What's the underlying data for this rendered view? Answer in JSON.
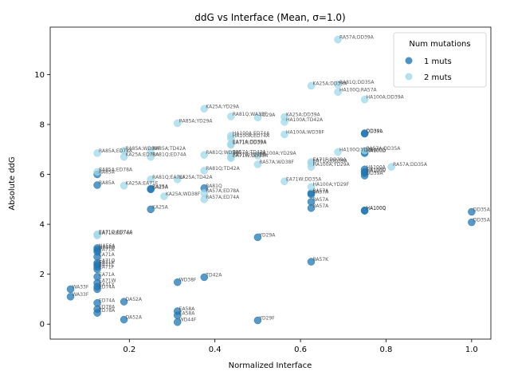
{
  "chart_data": {
    "type": "scatter",
    "title": "ddG vs Interface (Mean, σ=1.0)",
    "xlabel": "Normalized Interface",
    "ylabel": "Absolute ddG",
    "xlim": [
      0.015,
      1.045
    ],
    "ylim": [
      -0.6,
      11.9
    ],
    "xticks": [
      "0.2",
      "0.4",
      "0.6",
      "0.8",
      "1.0"
    ],
    "xtick_values": [
      0.2,
      0.4,
      0.6,
      0.8,
      1.0
    ],
    "yticks": [
      "0",
      "2",
      "4",
      "6",
      "8",
      "10"
    ],
    "ytick_values": [
      0,
      2,
      4,
      6,
      8,
      10
    ],
    "grid": false,
    "legend": {
      "title": "Num mutations",
      "position": "top-right",
      "entries": [
        "1 muts",
        "2 muts"
      ]
    },
    "colors": {
      "1 muts": "#1f77b4",
      "2 muts": "#9fd8ea"
    },
    "series": [
      {
        "name": "1 muts",
        "points": [
          {
            "x": 0.125,
            "y": 5.57,
            "label": "RA85A"
          },
          {
            "x": 0.125,
            "y": 6.0,
            "label": "RA85A"
          },
          {
            "x": 0.25,
            "y": 5.42,
            "label": "RA25A"
          },
          {
            "x": 0.25,
            "y": 5.4,
            "label": "KA25A"
          },
          {
            "x": 0.25,
            "y": 4.6,
            "label": "KA25A"
          },
          {
            "x": 0.375,
            "y": 5.45,
            "label": "RA81Q"
          },
          {
            "x": 0.75,
            "y": 7.65,
            "label": "DD39L"
          },
          {
            "x": 0.75,
            "y": 7.63,
            "label": "DD39A"
          },
          {
            "x": 0.75,
            "y": 6.9,
            "label": "HA100G"
          },
          {
            "x": 0.75,
            "y": 6.85,
            "label": "HA100D"
          },
          {
            "x": 0.75,
            "y": 6.2,
            "label": "HA100A"
          },
          {
            "x": 0.75,
            "y": 6.1,
            "label": "HA100Q"
          },
          {
            "x": 0.75,
            "y": 6.05,
            "label": "HA100E"
          },
          {
            "x": 0.75,
            "y": 5.95,
            "label": "DD39A"
          },
          {
            "x": 0.75,
            "y": 4.56,
            "label": "HA100Q"
          },
          {
            "x": 0.75,
            "y": 4.54,
            "label": "HA100Q"
          },
          {
            "x": 0.625,
            "y": 5.25,
            "label": "RA57A"
          },
          {
            "x": 0.625,
            "y": 5.2,
            "label": "RA57A"
          },
          {
            "x": 0.625,
            "y": 4.9,
            "label": "RA57A"
          },
          {
            "x": 0.625,
            "y": 4.65,
            "label": "RA57A"
          },
          {
            "x": 0.625,
            "y": 2.5,
            "label": "RA57K"
          },
          {
            "x": 1.0,
            "y": 4.5,
            "label": "DD35A"
          },
          {
            "x": 1.0,
            "y": 4.08,
            "label": "DD35A"
          },
          {
            "x": 0.5,
            "y": 3.48,
            "label": "YD29A"
          },
          {
            "x": 0.125,
            "y": 3.05,
            "label": "NA56A"
          },
          {
            "x": 0.125,
            "y": 2.98,
            "label": "NA56A"
          },
          {
            "x": 0.125,
            "y": 2.9,
            "label": "EA71A"
          },
          {
            "x": 0.125,
            "y": 2.7,
            "label": "EA71A"
          },
          {
            "x": 0.125,
            "y": 2.45,
            "label": "EA71Q"
          },
          {
            "x": 0.125,
            "y": 2.38,
            "label": "EA71K"
          },
          {
            "x": 0.125,
            "y": 2.3,
            "label": "EA71L"
          },
          {
            "x": 0.125,
            "y": 2.2,
            "label": "EA71F"
          },
          {
            "x": 0.125,
            "y": 1.9,
            "label": "EA71A"
          },
          {
            "x": 0.125,
            "y": 1.65,
            "label": "EA71W"
          },
          {
            "x": 0.125,
            "y": 1.5,
            "label": "EA71Y"
          },
          {
            "x": 0.125,
            "y": 1.4,
            "label": "ED74A"
          },
          {
            "x": 0.0625,
            "y": 1.4,
            "label": "WA33F"
          },
          {
            "x": 0.0625,
            "y": 1.1,
            "label": "WA33F"
          },
          {
            "x": 0.125,
            "y": 0.85,
            "label": "ED74A"
          },
          {
            "x": 0.125,
            "y": 0.6,
            "label": "ED78A"
          },
          {
            "x": 0.125,
            "y": 0.45,
            "label": "ED78A"
          },
          {
            "x": 0.1875,
            "y": 0.9,
            "label": "DA52A"
          },
          {
            "x": 0.1875,
            "y": 0.18,
            "label": "DA52A"
          },
          {
            "x": 0.3125,
            "y": 1.68,
            "label": "WD38F"
          },
          {
            "x": 0.375,
            "y": 1.88,
            "label": "TD42A"
          },
          {
            "x": 0.3125,
            "y": 0.52,
            "label": "EA58A"
          },
          {
            "x": 0.3125,
            "y": 0.35,
            "label": "EA58A"
          },
          {
            "x": 0.3125,
            "y": 0.08,
            "label": "WD44F"
          },
          {
            "x": 0.5,
            "y": 0.15,
            "label": "YD29F"
          }
        ]
      },
      {
        "name": "2 muts",
        "points": [
          {
            "x": 0.6875,
            "y": 11.4,
            "label": "RA57A;DD39A"
          },
          {
            "x": 0.625,
            "y": 9.55,
            "label": "KA25A;DD39A"
          },
          {
            "x": 0.6875,
            "y": 9.6,
            "label": "RA81Q;DD35A"
          },
          {
            "x": 0.6875,
            "y": 9.3,
            "label": "HA100Q;RA57A"
          },
          {
            "x": 0.75,
            "y": 9.0,
            "label": "HA100A;DD39A"
          },
          {
            "x": 0.375,
            "y": 8.63,
            "label": "KA25A;YD29A"
          },
          {
            "x": 0.4375,
            "y": 8.32,
            "label": "RA81Q;WA33F"
          },
          {
            "x": 0.5,
            "y": 8.28,
            "label": "YD29A"
          },
          {
            "x": 0.5625,
            "y": 8.3,
            "label": "KA25A;DD39A"
          },
          {
            "x": 0.5625,
            "y": 8.1,
            "label": "HA100A;TD42A"
          },
          {
            "x": 0.3125,
            "y": 8.05,
            "label": "RA85A;YD29A"
          },
          {
            "x": 0.4375,
            "y": 7.55,
            "label": "HA100A;ED74A"
          },
          {
            "x": 0.4375,
            "y": 7.45,
            "label": "HA100A;ED74A"
          },
          {
            "x": 0.5625,
            "y": 7.6,
            "label": "HA100A;WD38F"
          },
          {
            "x": 0.4375,
            "y": 7.22,
            "label": "EA71A;DD39A"
          },
          {
            "x": 0.4375,
            "y": 7.18,
            "label": "EA71K;DD39A"
          },
          {
            "x": 0.125,
            "y": 6.85,
            "label": "RA85A;ED74A"
          },
          {
            "x": 0.1875,
            "y": 6.95,
            "label": "RA85A;WD38F"
          },
          {
            "x": 0.25,
            "y": 6.95,
            "label": "RA85A;TD42A"
          },
          {
            "x": 0.1875,
            "y": 6.7,
            "label": "KA25A;ED78A"
          },
          {
            "x": 0.25,
            "y": 6.7,
            "label": "RA81Q;ED74A"
          },
          {
            "x": 0.375,
            "y": 6.78,
            "label": "RA81Q;WD38F"
          },
          {
            "x": 0.4375,
            "y": 6.8,
            "label": "RA57A;TD42A"
          },
          {
            "x": 0.4375,
            "y": 6.7,
            "label": "RA57A;TD42A"
          },
          {
            "x": 0.4375,
            "y": 6.65,
            "label": "EA71W;DD39A"
          },
          {
            "x": 0.5,
            "y": 6.75,
            "label": "HA100A;YD29A"
          },
          {
            "x": 0.625,
            "y": 6.5,
            "label": "EA71F;DD39A"
          },
          {
            "x": 0.625,
            "y": 6.45,
            "label": "EA71Q;DD39A"
          },
          {
            "x": 0.625,
            "y": 6.3,
            "label": "HA100A;YD29A"
          },
          {
            "x": 0.6875,
            "y": 6.9,
            "label": "HA100Q;YD29A"
          },
          {
            "x": 0.75,
            "y": 6.95,
            "label": "RA57A;DD35A"
          },
          {
            "x": 0.8125,
            "y": 6.3,
            "label": "RA57A;DD35A"
          },
          {
            "x": 0.5,
            "y": 6.4,
            "label": "RA57A;WD38F"
          },
          {
            "x": 0.125,
            "y": 6.1,
            "label": "RA85A;ED78A"
          },
          {
            "x": 0.375,
            "y": 6.15,
            "label": "RA81Q;TD42A"
          },
          {
            "x": 0.25,
            "y": 5.8,
            "label": "RA81Q;EA71F"
          },
          {
            "x": 0.3125,
            "y": 5.8,
            "label": "KA25A;TD42A"
          },
          {
            "x": 0.1875,
            "y": 5.55,
            "label": "KA25A;EA71F"
          },
          {
            "x": 0.5625,
            "y": 5.72,
            "label": "EA71W;DD35A"
          },
          {
            "x": 0.625,
            "y": 5.5,
            "label": "HA100A;YD29F"
          },
          {
            "x": 0.375,
            "y": 5.25,
            "label": "RA57A;ED78A"
          },
          {
            "x": 0.375,
            "y": 5.0,
            "label": "RA57A;ED74A"
          },
          {
            "x": 0.28125,
            "y": 5.12,
            "label": "KA25A;WD38F"
          },
          {
            "x": 0.125,
            "y": 3.6,
            "label": "EA71Q;ED74A"
          },
          {
            "x": 0.125,
            "y": 3.55,
            "label": "EA71K;ED74A"
          }
        ]
      }
    ]
  }
}
